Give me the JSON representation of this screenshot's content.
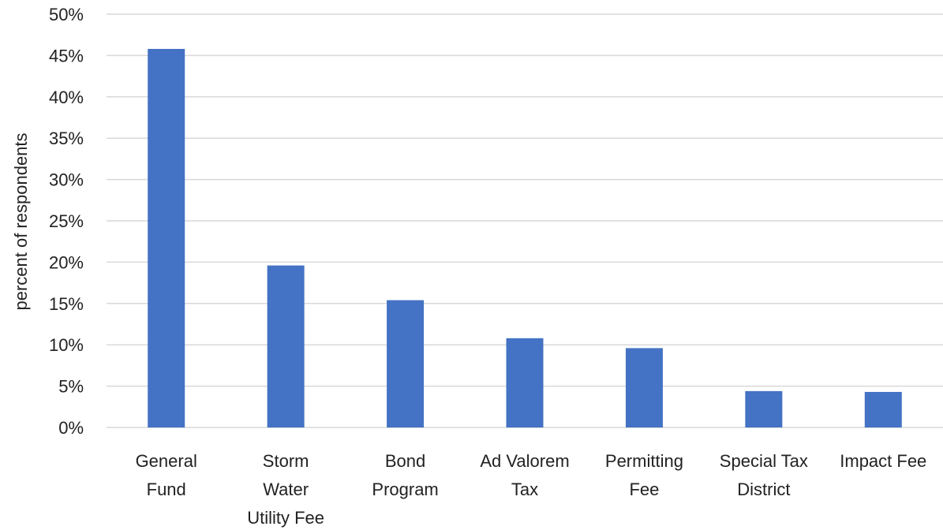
{
  "chart_data": {
    "type": "bar",
    "title": "",
    "xlabel": "",
    "ylabel": "percent of respondents",
    "categories": [
      [
        "General",
        "Fund"
      ],
      [
        "Storm",
        "Water",
        "Utility Fee"
      ],
      [
        "Bond",
        "Program"
      ],
      [
        "Ad Valorem",
        "Tax"
      ],
      [
        "Permitting",
        "Fee"
      ],
      [
        "Special Tax",
        "District"
      ],
      [
        "Impact Fee"
      ]
    ],
    "values": [
      45.8,
      19.6,
      15.4,
      10.8,
      9.6,
      4.4,
      4.3
    ],
    "ylim": [
      0,
      50
    ],
    "yticks": [
      "0%",
      "5%",
      "10%",
      "15%",
      "20%",
      "25%",
      "30%",
      "35%",
      "40%",
      "45%",
      "50%"
    ],
    "grid": true,
    "legend": "none",
    "colors": {
      "bar": "#4472c4"
    }
  }
}
